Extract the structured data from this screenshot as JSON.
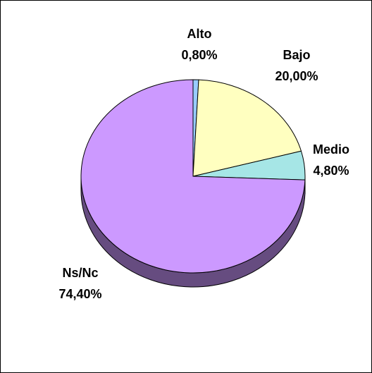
{
  "chart_data": {
    "type": "pie",
    "style": "3d",
    "title": "",
    "legend": "none",
    "start_angle_deg": 90,
    "direction": "clockwise",
    "slices": [
      {
        "label": "Alto",
        "value": 0.8,
        "display": "0,80%",
        "color": "#99ccff",
        "side_color": "#5c7a99"
      },
      {
        "label": "Bajo",
        "value": 20.0,
        "display": "20,00%",
        "color": "#ffffc0",
        "side_color": "#999973"
      },
      {
        "label": "Medio",
        "value": 4.8,
        "display": "4,80%",
        "color": "#a6e6e6",
        "side_color": "#648a8a"
      },
      {
        "label": "Ns/Nc",
        "value": 74.4,
        "display": "74,40%",
        "color": "#cc99ff",
        "side_color": "#664c80"
      }
    ]
  }
}
